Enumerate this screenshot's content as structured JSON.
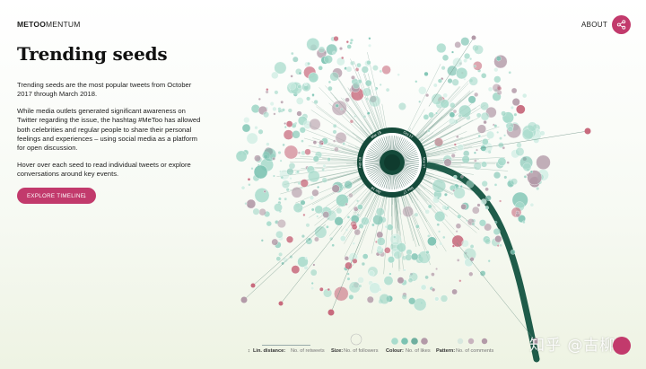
{
  "header": {
    "logo_bold": "METOO",
    "logo_regular": "MENTUM",
    "about": "ABOUT",
    "share_icon": "share-icon",
    "accent": "#c23a6c"
  },
  "main": {
    "title": "Trending seeds",
    "paragraphs": [
      "Trending seeds are the most popular tweets from October 2017 through March 2018.",
      "While media outlets generated significant awareness on Twitter regarding the issue, the hashtag #MeToo has allowed both celebrities and regular people to share their personal feelings and experiences – using social media as a platform for open discussion.",
      "Hover over each seed to read individual tweets or explore conversations around key events."
    ],
    "explore_button": "EXPLORE TIMELINE",
    "explore_icon": "arrow-down-icon"
  },
  "viz": {
    "ring_labels": [
      "Mar 18",
      "Oct 17",
      "Nov 17",
      "Dec 17",
      "Jan 18",
      "Feb 18"
    ],
    "colors": {
      "stem": "#1f5c4a",
      "center": "#144a3a",
      "seed_mint": "#a9dccd",
      "seed_teal": "#7cc3b2",
      "seed_mauve": "#b39aa8",
      "seed_rose": "#c86a7d"
    }
  },
  "legend": {
    "lin_key": "Lin. distance:",
    "lin_val": "No. of retweets",
    "size_key": "Size:",
    "size_val": "No. of followers",
    "colour_key": "Colour:",
    "colour_val": "No. of likes",
    "pattern_key": "Pattern:",
    "pattern_val": "No. of comments"
  },
  "watermark": "知乎 @古柳"
}
